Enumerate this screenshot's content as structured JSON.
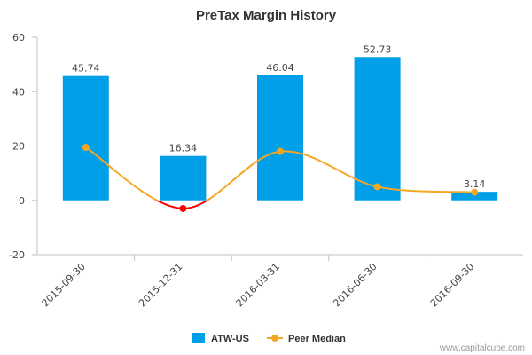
{
  "chart_data": {
    "type": "bar",
    "title": "PreTax Margin History",
    "categories": [
      "2015-09-30",
      "2015-12-31",
      "2016-03-31",
      "2016-06-30",
      "2016-09-30"
    ],
    "series": [
      {
        "name": "ATW-US",
        "type": "bar",
        "values": [
          45.74,
          16.34,
          46.04,
          52.73,
          3.14
        ],
        "labels": [
          "45.74",
          "16.34",
          "46.04",
          "52.73",
          "3.14"
        ],
        "color": "#009fe8"
      },
      {
        "name": "Peer Median",
        "type": "line",
        "values": [
          19.5,
          -3,
          18,
          5,
          3
        ],
        "color": "#f5a623",
        "negative_color": "#ff0000"
      }
    ],
    "yticks": [
      "60",
      "40",
      "20",
      "0",
      "-20"
    ],
    "ylim": [
      -20,
      60
    ],
    "grid": false,
    "legend_position": "bottom"
  },
  "watermark": "www.capitalcube.com",
  "colors": {
    "bar": "#009fe8",
    "line": "#f5a623",
    "line_negative": "#ff0000",
    "axis": "#c0c0c0"
  }
}
